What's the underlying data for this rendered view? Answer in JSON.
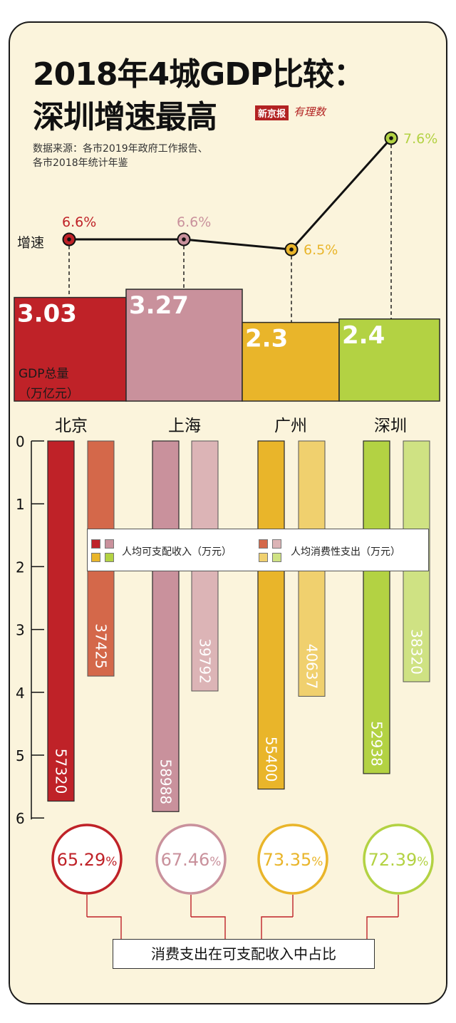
{
  "title": {
    "line1": "2018年4城GDP比较：",
    "line2": "深圳增速最高"
  },
  "brand": {
    "name": "新京报",
    "column": "有理数"
  },
  "source": {
    "line1": "数据来源：各市2019年政府工作报告、",
    "line2": "各市2018年统计年鉴"
  },
  "labels": {
    "growth": "增速",
    "gdp_line1": "GDP总量",
    "gdp_line2": "（万亿元）",
    "legend_income": "人均可支配收入（万元）",
    "legend_spend": "人均消费性支出（万元）",
    "footer": "消费支出在可支配收入中占比"
  },
  "colors": {
    "beijing": "#bf2228",
    "beijing_light": "#d4684a",
    "shanghai": "#c9919c",
    "shanghai_light": "#dcb4b6",
    "guangzhou": "#e9b52a",
    "guangzhou_light": "#f0d06e",
    "shenzhen": "#b3d243",
    "shenzhen_light": "#cfe283",
    "background": "#fbf4dc"
  },
  "chart_data": [
    {
      "type": "line",
      "categories": [
        "北京",
        "上海",
        "广州",
        "深圳"
      ],
      "series": [
        {
          "name": "增速",
          "values": [
            6.6,
            6.6,
            6.5,
            7.6
          ],
          "labels": [
            "6.6%",
            "6.6%",
            "6.5%",
            "7.6%"
          ]
        }
      ]
    },
    {
      "type": "bar",
      "categories": [
        "北京",
        "上海",
        "广州",
        "深圳"
      ],
      "series": [
        {
          "name": "GDP总量（万亿元）",
          "values": [
            3.03,
            3.27,
            2.3,
            2.4
          ],
          "labels": [
            "3.03",
            "3.27",
            "2.3",
            "2.4"
          ]
        }
      ]
    },
    {
      "type": "bar",
      "categories": [
        "北京",
        "上海",
        "广州",
        "深圳"
      ],
      "ylim": [
        0,
        6
      ],
      "yticks": [
        "0",
        "1",
        "2",
        "3",
        "4",
        "5",
        "6"
      ],
      "series": [
        {
          "name": "人均可支配收入（万元）",
          "values": [
            57320,
            58988,
            55400,
            52938
          ],
          "labels": [
            "57320",
            "58988",
            "55400",
            "52938"
          ]
        },
        {
          "name": "人均消费性支出（万元）",
          "values": [
            37425,
            39792,
            40637,
            38320
          ],
          "labels": [
            "37425",
            "39792",
            "40637",
            "38320"
          ]
        }
      ]
    },
    {
      "type": "pie",
      "categories": [
        "北京",
        "上海",
        "广州",
        "深圳"
      ],
      "series": [
        {
          "name": "消费支出在可支配收入中占比",
          "values": [
            65.29,
            67.46,
            73.35,
            72.39
          ],
          "numbers": [
            "65.29",
            "67.46",
            "73.35",
            "72.39"
          ],
          "unit": "%"
        }
      ]
    }
  ]
}
